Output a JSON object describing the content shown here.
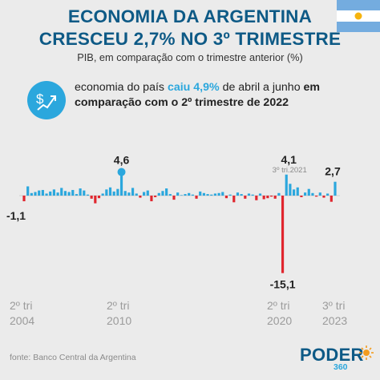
{
  "header": {
    "title_line1": "ECONOMIA DA ARGENTINA",
    "title_line2": "CRESCEU 2,7% NO 3º TRIMESTRE",
    "subtitle": "PIB, em comparação com o trimestre anterior (%)"
  },
  "note": {
    "icon": "dollar-growth-icon",
    "text_before": "economia do país ",
    "highlight": "caiu 4,9%",
    "text_middle": " de abril a junho ",
    "bold_tail": "em comparação com o 2º trimestre de 2022"
  },
  "colors": {
    "positive": "#2ba7dd",
    "negative": "#e0262e",
    "title": "#0e5a86"
  },
  "chart_data": {
    "type": "bar",
    "x_start": "2º tri 2004",
    "x_end": "3º tri 2023",
    "ylabel": "",
    "ylim": [
      -16,
      5
    ],
    "values": [
      -1.1,
      1.8,
      0.5,
      0.7,
      1.0,
      1.1,
      0.4,
      0.8,
      1.2,
      0.6,
      1.5,
      0.9,
      0.7,
      1.1,
      0.3,
      1.4,
      1.0,
      0.2,
      -0.6,
      -1.5,
      -0.5,
      0.4,
      1.2,
      1.6,
      0.8,
      1.3,
      4.6,
      0.9,
      0.6,
      1.5,
      0.4,
      -0.4,
      0.7,
      1.0,
      -1.1,
      -0.3,
      0.5,
      0.9,
      1.4,
      0.3,
      -0.8,
      0.6,
      0.1,
      0.3,
      0.5,
      0.2,
      -0.6,
      0.8,
      0.5,
      0.3,
      0.2,
      0.4,
      0.5,
      0.7,
      -0.5,
      0.2,
      -1.3,
      0.6,
      0.3,
      -0.6,
      0.4,
      0.2,
      -0.9,
      0.4,
      -0.7,
      -0.5,
      -0.2,
      -0.6,
      0.5,
      -15.1,
      4.1,
      2.3,
      1.2,
      1.6,
      -0.3,
      0.6,
      1.3,
      0.5,
      -0.2,
      0.6,
      -0.4,
      0.4,
      -1.2,
      2.7
    ],
    "annotations": [
      {
        "index": 0,
        "label": "-1,1"
      },
      {
        "index": 26,
        "label": "4,6"
      },
      {
        "index": 69,
        "label": "-15,1"
      },
      {
        "index": 70,
        "label": "4,1",
        "sublabel": "3º tri.2021"
      },
      {
        "index": 83,
        "label": "2,7"
      }
    ],
    "x_labels": [
      {
        "line1": "2º tri",
        "line2": "2004"
      },
      {
        "line1": "2º tri",
        "line2": "2010"
      },
      {
        "line1": "2º tri",
        "line2": "2020"
      },
      {
        "line1": "3º tri",
        "line2": "2023"
      }
    ]
  },
  "footer": {
    "source": "fonte: Banco Central da Argentina",
    "logo_word": "PODER",
    "logo_num": "360"
  }
}
